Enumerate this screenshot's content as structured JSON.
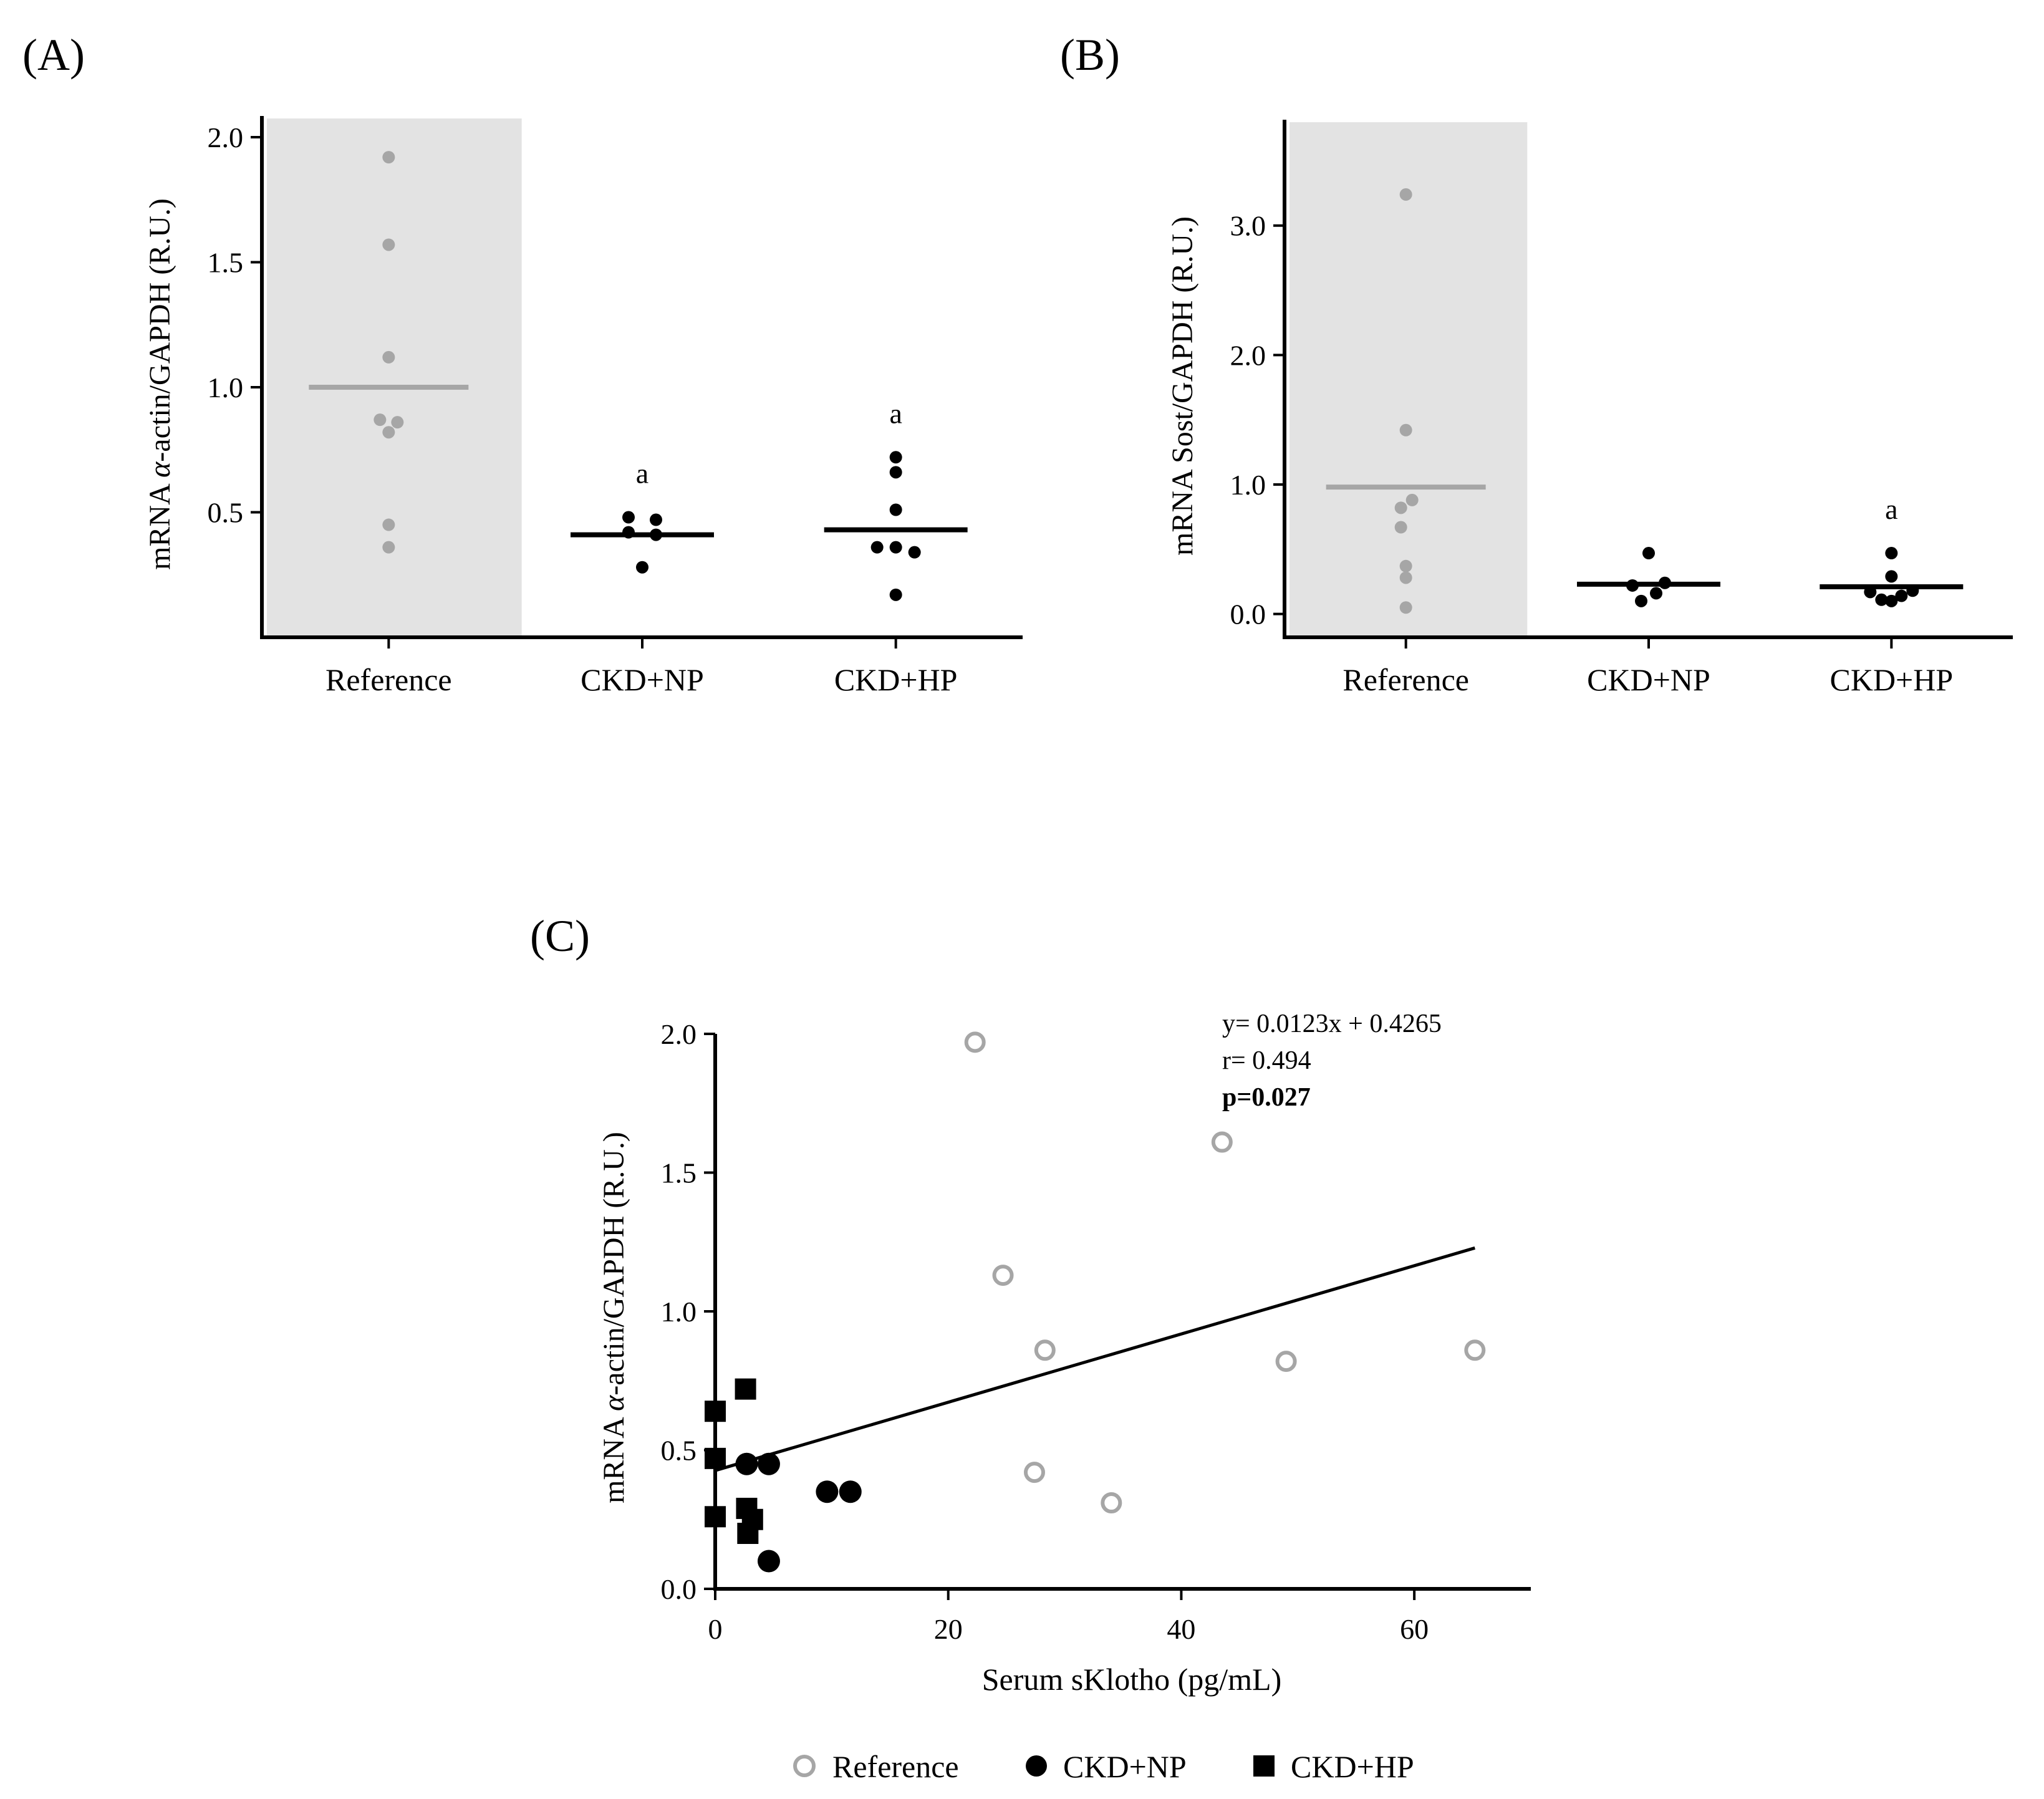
{
  "colors": {
    "reference": "#a6a6a6",
    "ckd": "#000000",
    "shade": "#e3e3e3"
  },
  "chart_data": [
    {
      "panel": "(A)",
      "type": "scatter",
      "categories": [
        "Reference",
        "CKD+NP",
        "CKD+HP"
      ],
      "ylabel_parts": [
        "mRNA ",
        "α",
        "-actin/GAPDH (R.U.)"
      ],
      "yticks": [
        "0.5",
        "1.0",
        "1.5",
        "2.0"
      ],
      "ytick_values": [
        0.5,
        1.0,
        1.5,
        2.0
      ],
      "ylim": [
        0.0,
        2.05
      ],
      "shaded_category": "Reference",
      "groups": [
        {
          "name": "Reference",
          "points": [
            1.92,
            1.57,
            1.12,
            0.87,
            0.86,
            0.82,
            0.45,
            0.36
          ],
          "mean": 1.0,
          "sig": ""
        },
        {
          "name": "CKD+NP",
          "points": [
            0.48,
            0.47,
            0.42,
            0.41,
            0.28
          ],
          "mean": 0.41,
          "sig": "a"
        },
        {
          "name": "CKD+HP",
          "points": [
            0.72,
            0.66,
            0.51,
            0.36,
            0.36,
            0.34,
            0.17
          ],
          "mean": 0.43,
          "sig": "a"
        }
      ]
    },
    {
      "panel": "(B)",
      "type": "scatter",
      "categories": [
        "Reference",
        "CKD+NP",
        "CKD+HP"
      ],
      "ylabel_parts": [
        "mRNA Sost/GAPDH (R.U.)"
      ],
      "yticks": [
        "0.0",
        "1.0",
        "2.0",
        "3.0"
      ],
      "ytick_values": [
        0.0,
        1.0,
        2.0,
        3.0
      ],
      "ylim": [
        -0.18,
        3.75
      ],
      "shaded_category": "Reference",
      "groups": [
        {
          "name": "Reference",
          "points": [
            3.24,
            1.42,
            0.88,
            0.82,
            0.67,
            0.37,
            0.28,
            0.05
          ],
          "mean": 0.98,
          "sig": ""
        },
        {
          "name": "CKD+NP",
          "points": [
            0.47,
            0.24,
            0.22,
            0.16,
            0.1
          ],
          "mean": 0.23,
          "sig": ""
        },
        {
          "name": "CKD+HP",
          "points": [
            0.47,
            0.29,
            0.18,
            0.17,
            0.14,
            0.11,
            0.1
          ],
          "mean": 0.21,
          "sig": "a"
        }
      ]
    },
    {
      "panel": "(C)",
      "type": "scatter",
      "title": "",
      "xlabel": "Serum sKlotho (pg/mL)",
      "ylabel_parts": [
        "mRNA ",
        "α",
        "-actin/GAPDH (R.U.)"
      ],
      "xticks": [
        "0",
        "20",
        "40",
        "60"
      ],
      "xtick_values": [
        0,
        20,
        40,
        60
      ],
      "yticks": [
        "0.0",
        "0.5",
        "1.0",
        "1.5",
        "2.0"
      ],
      "ytick_values": [
        0.0,
        0.5,
        1.0,
        1.5,
        2.0
      ],
      "xlim": [
        0,
        70
      ],
      "ylim": [
        0.0,
        2.0
      ],
      "series": [
        {
          "name": "Reference",
          "marker": "open-circle",
          "points": [
            [
              22.3,
              1.97
            ],
            [
              43.5,
              1.61
            ],
            [
              24.7,
              1.13
            ],
            [
              28.3,
              0.86
            ],
            [
              65.2,
              0.86
            ],
            [
              49.0,
              0.82
            ],
            [
              27.4,
              0.42
            ],
            [
              34.0,
              0.31
            ]
          ]
        },
        {
          "name": "CKD+NP",
          "marker": "filled-circle",
          "points": [
            [
              2.7,
              0.45
            ],
            [
              4.6,
              0.45
            ],
            [
              9.6,
              0.35
            ],
            [
              11.6,
              0.35
            ],
            [
              4.6,
              0.1
            ]
          ]
        },
        {
          "name": "CKD+HP",
          "marker": "filled-square",
          "points": [
            [
              0.0,
              0.64
            ],
            [
              2.6,
              0.72
            ],
            [
              0.0,
              0.47
            ],
            [
              0.0,
              0.26
            ],
            [
              2.7,
              0.29
            ],
            [
              3.2,
              0.25
            ],
            [
              2.8,
              0.2
            ]
          ]
        }
      ],
      "regression": {
        "slope": 0.0123,
        "intercept": 0.4265,
        "x_range": [
          0,
          65.2
        ]
      },
      "annotation": {
        "equation": "y= 0.0123x + 0.4265",
        "r": "r= 0.494",
        "p": "p=0.027"
      },
      "legend": [
        "Reference",
        "CKD+NP",
        "CKD+HP"
      ]
    }
  ]
}
